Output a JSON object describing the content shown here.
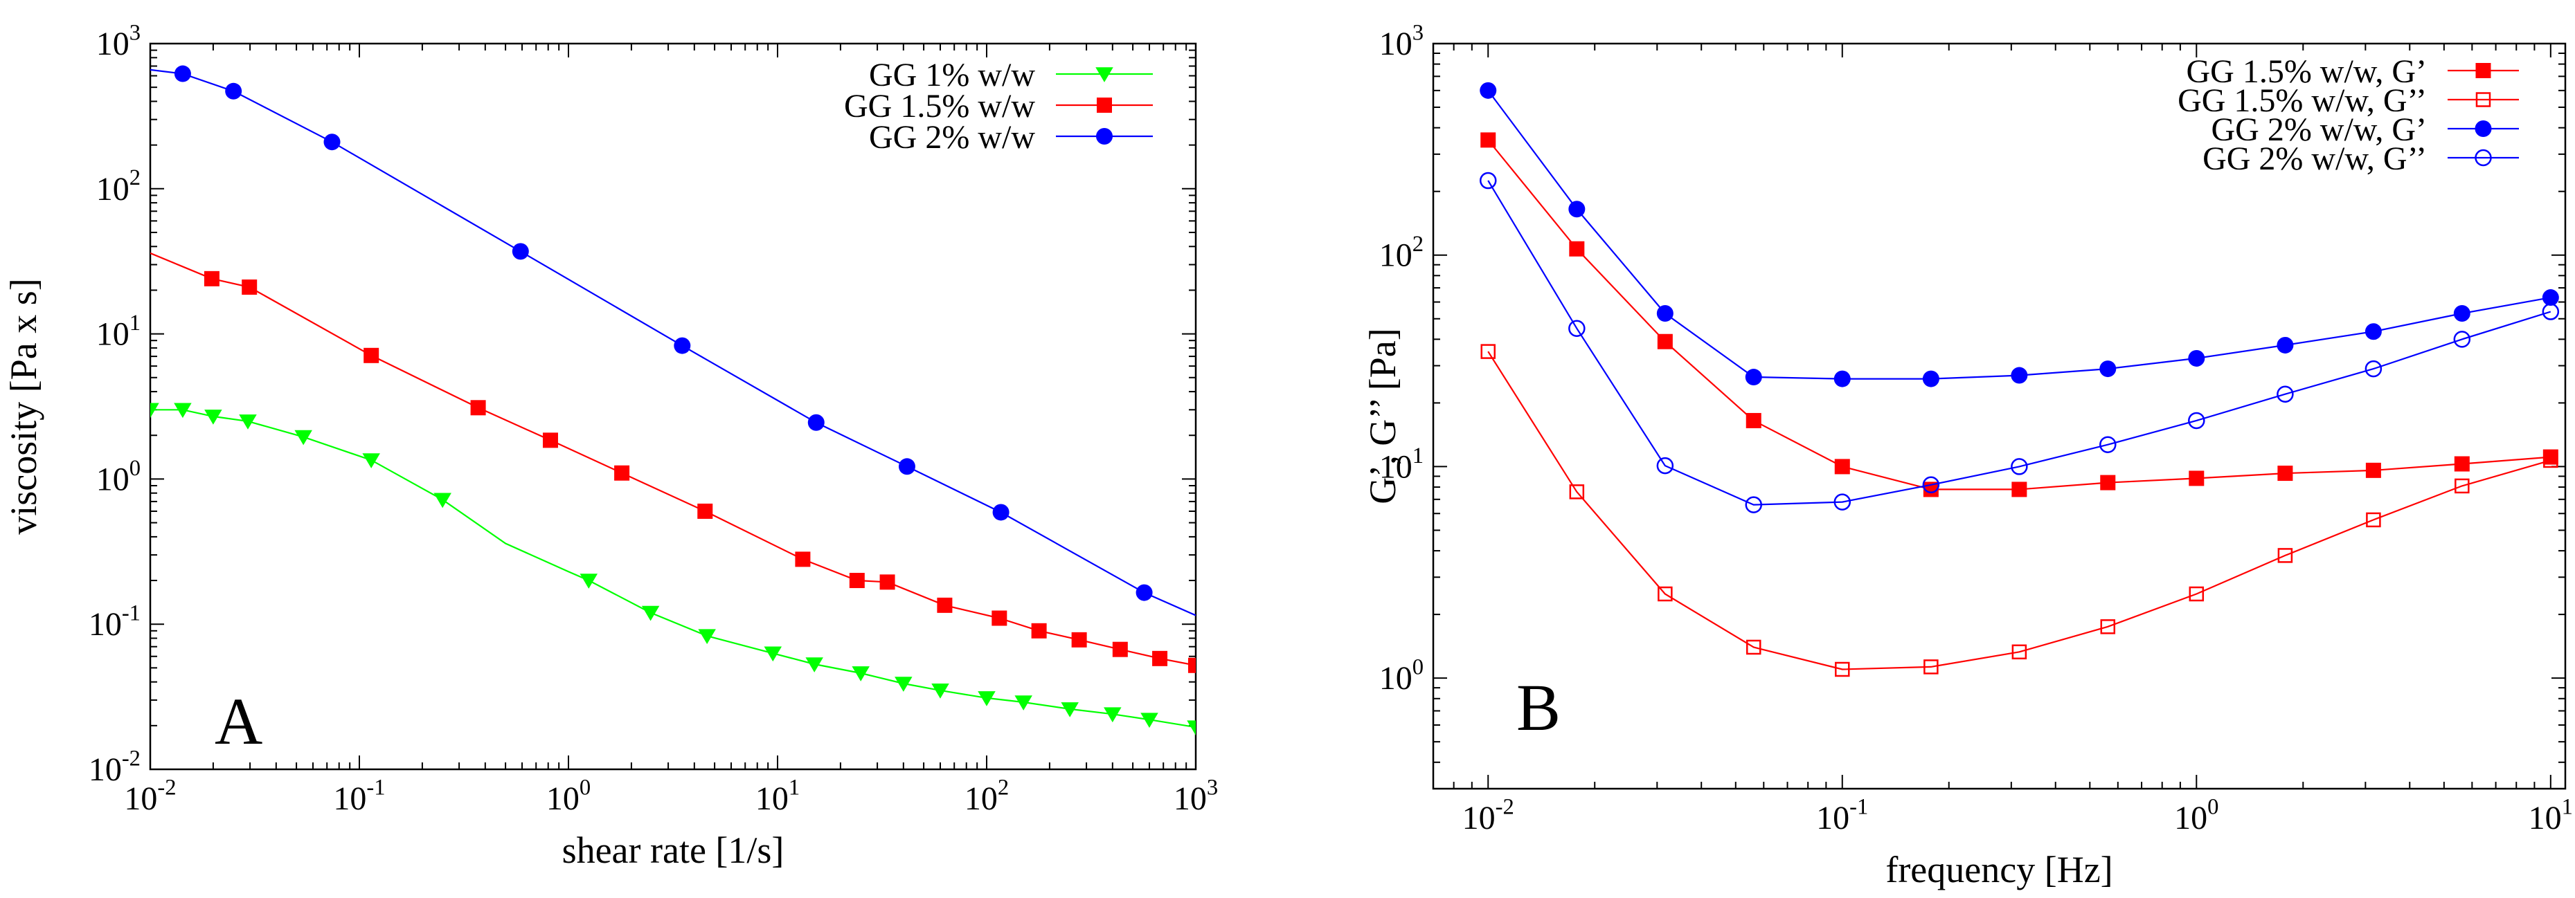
{
  "chart_data": [
    {
      "type": "line",
      "panel_label": "A",
      "title": "",
      "xlabel": "shear rate [1/s]",
      "ylabel": "viscosity [Pa x s]",
      "xscale": "log",
      "yscale": "log",
      "xlim": [
        0.01,
        1000
      ],
      "ylim": [
        0.01,
        1000
      ],
      "x_ticks": [
        {
          "base": "10",
          "exp": "-2"
        },
        {
          "base": "10",
          "exp": "-1"
        },
        {
          "base": "10",
          "exp": "0"
        },
        {
          "base": "10",
          "exp": "1"
        },
        {
          "base": "10",
          "exp": "2"
        },
        {
          "base": "10",
          "exp": "3"
        }
      ],
      "y_ticks": [
        {
          "base": "10",
          "exp": "-2"
        },
        {
          "base": "10",
          "exp": "-1"
        },
        {
          "base": "10",
          "exp": "0"
        },
        {
          "base": "10",
          "exp": "1"
        },
        {
          "base": "10",
          "exp": "2"
        },
        {
          "base": "10",
          "exp": "3"
        }
      ],
      "legend_position": "top-right",
      "series": [
        {
          "name": "GG 1% w/w",
          "color": "#00ff00",
          "marker": "triangle-down",
          "line": {
            "x": [
              0.01,
              0.0143,
              0.02,
              0.0293,
              0.054,
              0.114,
              0.25,
              0.5,
              1.0,
              1.25,
              2.47,
              4.6,
              9.5,
              15,
              25,
              40,
              60,
              100,
              150,
              250,
              400,
              600,
              1000
            ],
            "y": [
              3.0,
              3.0,
              2.7,
              2.5,
              1.95,
              1.35,
              0.72,
              0.36,
              0.23,
              0.2,
              0.12,
              0.083,
              0.063,
              0.053,
              0.046,
              0.039,
              0.035,
              0.031,
              0.029,
              0.026,
              0.024,
              0.022,
              0.0195
            ]
          },
          "markers": {
            "x": [
              0.01,
              0.0143,
              0.02,
              0.0293,
              0.054,
              0.114,
              0.25,
              1.25,
              2.47,
              4.6,
              9.5,
              15,
              25,
              40,
              60,
              100,
              150,
              250,
              400,
              600,
              1000
            ],
            "y": [
              3.0,
              3.0,
              2.7,
              2.5,
              1.95,
              1.35,
              0.72,
              0.2,
              0.12,
              0.083,
              0.063,
              0.053,
              0.046,
              0.039,
              0.035,
              0.031,
              0.029,
              0.026,
              0.024,
              0.022,
              0.0195
            ]
          }
        },
        {
          "name": "GG 1.5% w/w",
          "color": "#ff0000",
          "marker": "square",
          "line": {
            "x": [
              0.01,
              0.0197,
              0.0298,
              0.114,
              0.37,
              0.82,
              1.8,
              4.5,
              13.2,
              24,
              33.5,
              63,
              115,
              178,
              277,
              435,
              673,
              1000
            ],
            "y": [
              36,
              24,
              21,
              7.1,
              3.1,
              1.85,
              1.1,
              0.6,
              0.28,
              0.2,
              0.195,
              0.135,
              0.11,
              0.09,
              0.078,
              0.067,
              0.058,
              0.052
            ]
          },
          "markers": {
            "x": [
              0.0197,
              0.0298,
              0.114,
              0.37,
              0.82,
              1.8,
              4.5,
              13.2,
              24,
              33.5,
              63,
              115,
              178,
              277,
              435,
              673,
              1000
            ],
            "y": [
              24,
              21,
              7.1,
              3.1,
              1.85,
              1.1,
              0.6,
              0.28,
              0.2,
              0.195,
              0.135,
              0.11,
              0.09,
              0.078,
              0.067,
              0.058,
              0.052
            ]
          }
        },
        {
          "name": "GG 2% w/w",
          "color": "#0000ff",
          "marker": "circle-filled",
          "line": {
            "x": [
              0.01,
              0.0143,
              0.025,
              0.074,
              0.59,
              3.5,
              15.3,
              41.6,
              117,
              567,
              1000
            ],
            "y": [
              660,
              620,
              470,
              210,
              37,
              8.3,
              2.45,
              1.22,
              0.59,
              0.165,
              0.115
            ]
          },
          "markers": {
            "x": [
              0.0143,
              0.025,
              0.074,
              0.59,
              3.5,
              15.3,
              41.6,
              117,
              567
            ],
            "y": [
              620,
              470,
              210,
              37,
              8.3,
              2.45,
              1.22,
              0.59,
              0.165
            ]
          }
        }
      ]
    },
    {
      "type": "line",
      "panel_label": "B",
      "title": "",
      "xlabel": "frequency [Hz]",
      "ylabel": "G’, G’’ [Pa]",
      "xscale": "log",
      "yscale": "log",
      "xlim": [
        0.007,
        11
      ],
      "ylim": [
        0.3,
        1000
      ],
      "x_ticks": [
        {
          "base": "10",
          "exp": "-2"
        },
        {
          "base": "10",
          "exp": "-1"
        },
        {
          "base": "10",
          "exp": "0"
        },
        {
          "base": "10",
          "exp": "1"
        }
      ],
      "y_ticks": [
        {
          "base": "10",
          "exp": "0"
        },
        {
          "base": "10",
          "exp": "1"
        },
        {
          "base": "10",
          "exp": "2"
        },
        {
          "base": "10",
          "exp": "3"
        }
      ],
      "legend_position": "top-right",
      "series": [
        {
          "name": "GG 1.5% w/w, G’",
          "color": "#ff0000",
          "marker": "square-filled",
          "x": [
            0.01,
            0.0178,
            0.0316,
            0.0562,
            0.1,
            0.178,
            0.316,
            0.562,
            1,
            1.78,
            3.16,
            5.62,
            10
          ],
          "y": [
            350,
            107,
            39,
            16.5,
            10,
            7.8,
            7.8,
            8.4,
            8.8,
            9.3,
            9.6,
            10.3,
            11.1
          ]
        },
        {
          "name": "GG 1.5% w/w,  G’’",
          "color": "#ff0000",
          "marker": "square-open",
          "x": [
            0.01,
            0.0178,
            0.0316,
            0.0562,
            0.1,
            0.178,
            0.316,
            0.562,
            1,
            1.78,
            3.16,
            5.62,
            10
          ],
          "y": [
            35,
            7.6,
            2.5,
            1.4,
            1.1,
            1.13,
            1.33,
            1.75,
            2.5,
            3.8,
            5.6,
            8.1,
            10.7
          ]
        },
        {
          "name": "GG 2% w/w, G’",
          "color": "#0000ff",
          "marker": "circle-filled",
          "x": [
            0.01,
            0.0178,
            0.0316,
            0.0562,
            0.1,
            0.178,
            0.316,
            0.562,
            1,
            1.78,
            3.16,
            5.62,
            10
          ],
          "y": [
            600,
            165,
            53,
            26.5,
            26,
            26,
            27,
            29,
            32.5,
            37.5,
            43.5,
            53,
            63
          ]
        },
        {
          "name": "GG 2% w/w,  G’’",
          "color": "#0000ff",
          "marker": "circle-open",
          "x": [
            0.01,
            0.0178,
            0.0316,
            0.0562,
            0.1,
            0.178,
            0.316,
            0.562,
            1,
            1.78,
            3.16,
            5.62,
            10
          ],
          "y": [
            225,
            45,
            10.1,
            6.6,
            6.8,
            8.2,
            10,
            12.7,
            16.5,
            22,
            29,
            40,
            54
          ]
        }
      ]
    }
  ]
}
